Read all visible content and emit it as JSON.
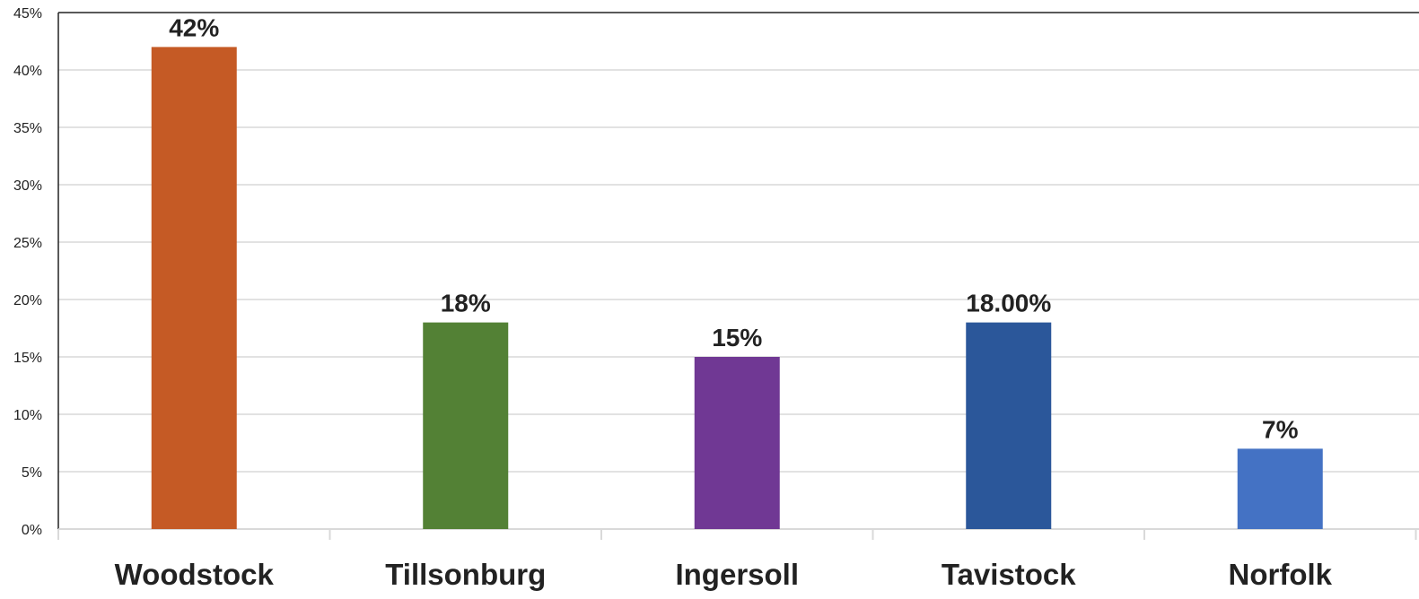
{
  "chart_data": {
    "type": "bar",
    "title": "",
    "xlabel": "",
    "ylabel": "",
    "categories": [
      "Woodstock",
      "Tillsonburg",
      "Ingersoll",
      "Tavistock",
      "Norfolk"
    ],
    "values": [
      42,
      18,
      15,
      18,
      7
    ],
    "data_labels": [
      "42%",
      "18%",
      "15%",
      "18.00%",
      "7%"
    ],
    "bar_colors": [
      "#C55A25",
      "#538135",
      "#703894",
      "#2B579A",
      "#4472C4"
    ],
    "ylim": [
      0,
      45
    ],
    "y_ticks": [
      "0%",
      "5%",
      "10%",
      "15%",
      "20%",
      "25%",
      "30%",
      "35%",
      "40%",
      "45%"
    ],
    "y_tick_values": [
      0,
      5,
      10,
      15,
      20,
      25,
      30,
      35,
      40,
      45
    ],
    "grid": true,
    "legend": "none"
  }
}
